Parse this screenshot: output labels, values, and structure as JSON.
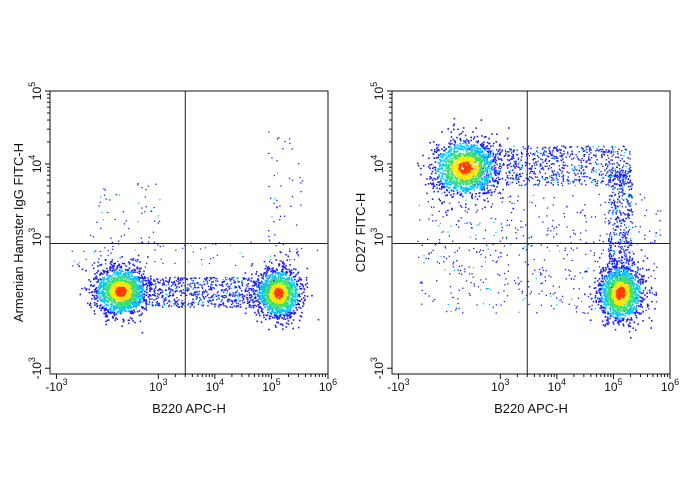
{
  "chart_data": [
    {
      "type": "scatter",
      "subtype": "flow-cytometry-density-dot-plot",
      "xlabel": "B220 APC-H",
      "ylabel": "Armenian Hamster IgG FITC-H",
      "x_scale": "biexponential",
      "y_scale": "biexponential",
      "x_ticks": [
        {
          "base": "-10",
          "exp": "3"
        },
        {
          "base": "10",
          "exp": "3"
        },
        {
          "base": "10",
          "exp": "4"
        },
        {
          "base": "10",
          "exp": "5"
        },
        {
          "base": "10",
          "exp": "6"
        }
      ],
      "y_ticks": [
        {
          "base": "-10",
          "exp": "3"
        },
        {
          "base": "10",
          "exp": "3"
        },
        {
          "base": "10",
          "exp": "4"
        },
        {
          "base": "10",
          "exp": "5"
        }
      ],
      "quadrant_gate": {
        "x": 3000,
        "y": 900
      },
      "populations": [
        {
          "name": "B220- cluster",
          "x_center": 250,
          "y_center": 180,
          "density": "high"
        },
        {
          "name": "B220+ cluster",
          "x_center": 130000,
          "y_center": 150,
          "density": "high"
        }
      ],
      "density_colors": [
        "#1a1aff",
        "#00c8ff",
        "#39e36b",
        "#ffe600",
        "#ff3b00"
      ]
    },
    {
      "type": "scatter",
      "subtype": "flow-cytometry-density-dot-plot",
      "xlabel": "B220 APC-H",
      "ylabel": "CD27 FITC-H",
      "x_scale": "biexponential",
      "y_scale": "biexponential",
      "x_ticks": [
        {
          "base": "-10",
          "exp": "3"
        },
        {
          "base": "10",
          "exp": "3"
        },
        {
          "base": "10",
          "exp": "4"
        },
        {
          "base": "10",
          "exp": "5"
        },
        {
          "base": "10",
          "exp": "6"
        }
      ],
      "y_ticks": [
        {
          "base": "-10",
          "exp": "3"
        },
        {
          "base": "10",
          "exp": "3"
        },
        {
          "base": "10",
          "exp": "4"
        },
        {
          "base": "10",
          "exp": "5"
        }
      ],
      "quadrant_gate": {
        "x": 3000,
        "y": 900
      },
      "populations": [
        {
          "name": "B220- CD27+ cluster",
          "x_center": 300,
          "y_center": 9000,
          "density": "high"
        },
        {
          "name": "B220+ CD27- cluster",
          "x_center": 130000,
          "y_center": 150,
          "density": "high"
        }
      ],
      "density_colors": [
        "#1a1aff",
        "#00c8ff",
        "#39e36b",
        "#ffe600",
        "#ff3b00"
      ]
    }
  ]
}
